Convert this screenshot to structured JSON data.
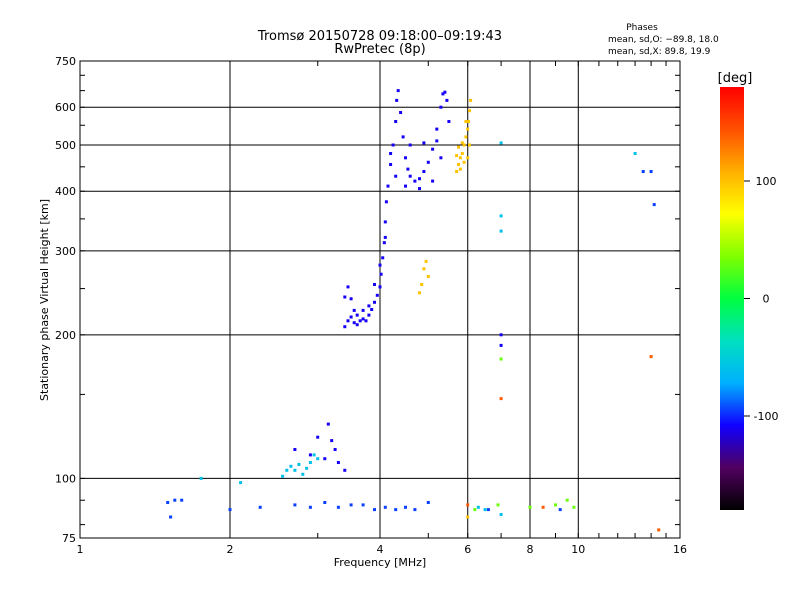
{
  "chart_data": {
    "type": "scatter",
    "title": "Tromsø 20150728 09:18:00–09:19:43",
    "subtitle": "RwPretec (8p)",
    "xlabel": "Frequency [MHz]",
    "ylabel": "Stationary phase Virtual Height [km]",
    "x_scale": "log",
    "y_scale": "log",
    "xlim": [
      1,
      16
    ],
    "ylim": [
      75,
      750
    ],
    "x_ticks": [
      1,
      2,
      4,
      6,
      8,
      10,
      16
    ],
    "y_ticks": [
      75,
      100,
      200,
      300,
      400,
      500,
      600,
      750
    ],
    "grid": true,
    "phase_stats": {
      "heading": "Phases",
      "line_o": "mean, sd,O: −89.8, 18.0",
      "line_x": "mean, sd,X: 89.8, 19.9"
    },
    "colorbar": {
      "label": "[deg]",
      "range": [
        -180,
        180
      ],
      "ticks": [
        -100,
        0,
        100
      ],
      "colors": [
        "#000000",
        "#500060",
        "#1000ff",
        "#00b0ff",
        "#00e0c0",
        "#00ff40",
        "#80ff00",
        "#ffff00",
        "#ffb000",
        "#ff5000",
        "#ff0000"
      ]
    },
    "series": [
      {
        "name": "",
        "phase": -95,
        "points": [
          [
            1.5,
            89
          ],
          [
            1.55,
            90
          ],
          [
            1.6,
            90
          ],
          [
            1.52,
            83
          ],
          [
            2.0,
            86
          ],
          [
            2.3,
            87
          ],
          [
            2.7,
            88
          ],
          [
            2.9,
            87
          ],
          [
            3.1,
            89
          ],
          [
            3.3,
            87
          ],
          [
            3.5,
            88
          ],
          [
            3.7,
            88
          ],
          [
            3.9,
            86
          ],
          [
            4.1,
            87
          ],
          [
            4.3,
            86
          ],
          [
            4.5,
            87
          ],
          [
            4.7,
            86
          ],
          [
            5.0,
            89
          ],
          [
            6.6,
            86
          ],
          [
            9.2,
            86
          ],
          [
            13.5,
            440
          ],
          [
            14.0,
            440
          ],
          [
            14.2,
            375
          ]
        ]
      },
      {
        "name": "",
        "phase": -110,
        "points": [
          [
            3.4,
            208
          ],
          [
            3.45,
            214
          ],
          [
            3.5,
            218
          ],
          [
            3.55,
            212
          ],
          [
            3.6,
            210
          ],
          [
            3.65,
            214
          ],
          [
            3.7,
            216
          ],
          [
            3.75,
            214
          ],
          [
            3.8,
            220
          ],
          [
            3.85,
            226
          ],
          [
            3.9,
            234
          ],
          [
            3.95,
            242
          ],
          [
            4.0,
            252
          ],
          [
            4.02,
            268
          ],
          [
            4.05,
            290
          ],
          [
            4.08,
            312
          ],
          [
            4.1,
            345
          ],
          [
            4.12,
            380
          ],
          [
            4.15,
            410
          ],
          [
            4.2,
            455
          ],
          [
            4.25,
            500
          ],
          [
            4.3,
            560
          ],
          [
            4.32,
            620
          ],
          [
            4.35,
            650
          ],
          [
            4.4,
            585
          ],
          [
            4.45,
            520
          ],
          [
            4.5,
            470
          ],
          [
            4.55,
            445
          ],
          [
            4.6,
            430
          ],
          [
            4.7,
            420
          ],
          [
            4.8,
            425
          ],
          [
            4.9,
            440
          ],
          [
            5.0,
            460
          ],
          [
            5.1,
            490
          ],
          [
            5.2,
            540
          ],
          [
            5.3,
            600
          ],
          [
            5.35,
            640
          ],
          [
            5.4,
            645
          ],
          [
            5.45,
            620
          ],
          [
            5.5,
            560
          ],
          [
            4.3,
            430
          ],
          [
            4.5,
            410
          ],
          [
            4.8,
            405
          ],
          [
            5.1,
            420
          ],
          [
            5.3,
            470
          ],
          [
            3.4,
            240
          ],
          [
            3.45,
            252
          ],
          [
            3.5,
            238
          ],
          [
            3.55,
            225
          ],
          [
            3.6,
            220
          ],
          [
            3.7,
            225
          ],
          [
            3.8,
            230
          ],
          [
            3.9,
            255
          ],
          [
            4.0,
            280
          ],
          [
            4.1,
            320
          ],
          [
            4.2,
            480
          ],
          [
            4.6,
            500
          ],
          [
            4.9,
            505
          ],
          [
            5.2,
            510
          ],
          [
            2.7,
            115
          ],
          [
            2.9,
            112
          ],
          [
            3.0,
            122
          ],
          [
            3.15,
            130
          ],
          [
            3.2,
            120
          ],
          [
            3.1,
            110
          ],
          [
            3.3,
            108
          ],
          [
            3.4,
            104
          ],
          [
            3.25,
            115
          ],
          [
            7.0,
            200
          ],
          [
            7.0,
            190
          ]
        ]
      },
      {
        "name": "",
        "phase": -60,
        "points": [
          [
            2.55,
            101
          ],
          [
            2.6,
            104
          ],
          [
            2.65,
            106
          ],
          [
            2.7,
            104
          ],
          [
            2.75,
            107
          ],
          [
            2.8,
            102
          ],
          [
            2.85,
            105
          ],
          [
            2.9,
            108
          ],
          [
            2.95,
            112
          ],
          [
            3.0,
            110
          ],
          [
            2.1,
            98
          ],
          [
            1.75,
            100
          ],
          [
            6.3,
            87
          ],
          [
            6.5,
            86
          ],
          [
            7.0,
            505
          ],
          [
            7.0,
            355
          ],
          [
            7.0,
            330
          ],
          [
            7.0,
            84
          ],
          [
            13.0,
            480
          ]
        ]
      },
      {
        "name": "",
        "phase": 100,
        "points": [
          [
            5.7,
            440
          ],
          [
            5.75,
            455
          ],
          [
            5.8,
            470
          ],
          [
            5.85,
            480
          ],
          [
            5.9,
            500
          ],
          [
            5.95,
            520
          ],
          [
            6.0,
            540
          ],
          [
            6.02,
            560
          ],
          [
            6.05,
            590
          ],
          [
            6.08,
            620
          ],
          [
            5.8,
            445
          ],
          [
            5.9,
            460
          ],
          [
            6.0,
            470
          ],
          [
            6.05,
            500
          ],
          [
            5.7,
            475
          ],
          [
            5.75,
            495
          ],
          [
            5.85,
            505
          ],
          [
            5.95,
            560
          ],
          [
            4.9,
            275
          ],
          [
            4.95,
            285
          ],
          [
            5.0,
            265
          ],
          [
            4.85,
            255
          ],
          [
            4.8,
            245
          ],
          [
            6.0,
            83
          ]
        ]
      },
      {
        "name": "",
        "phase": 30,
        "points": [
          [
            7.0,
            178
          ],
          [
            6.9,
            88
          ],
          [
            8.0,
            87
          ],
          [
            9.0,
            88
          ],
          [
            9.5,
            90
          ],
          [
            9.8,
            87
          ],
          [
            6.2,
            86
          ]
        ]
      },
      {
        "name": "",
        "phase": 140,
        "points": [
          [
            7.0,
            147
          ],
          [
            14.0,
            180
          ],
          [
            14.5,
            78
          ],
          [
            6.0,
            88
          ],
          [
            8.5,
            87
          ]
        ]
      }
    ]
  }
}
